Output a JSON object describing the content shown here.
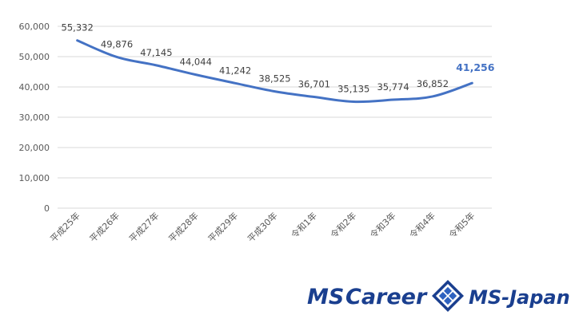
{
  "chart_data": {
    "type": "line",
    "categories": [
      "平成25年",
      "平成26年",
      "平成27年",
      "平成28年",
      "平成29年",
      "平成30年",
      "令和1年",
      "令和2年",
      "令和3年",
      "令和4年",
      "令和5年"
    ],
    "series": [
      {
        "values": [
          55332,
          49876,
          47145,
          44044,
          41242,
          38525,
          36701,
          35135,
          35774,
          36852,
          41256
        ],
        "labels": [
          "55,332",
          "49,876",
          "47,145",
          "44,044",
          "41,242",
          "38,525",
          "36,701",
          "35,135",
          "35,774",
          "36,852",
          "41,256"
        ],
        "color": "#4472C4"
      }
    ],
    "yticks": [
      "0",
      "10,000",
      "20,000",
      "30,000",
      "40,000",
      "50,000",
      "60,000"
    ],
    "ylim": [
      0,
      60000
    ],
    "grid": true,
    "legend": "none",
    "last_point_highlight": true
  },
  "logo": {
    "left_text_1": "MS",
    "left_text_2": "Career",
    "right_text": "MS-Japan",
    "color": "#1a3f8f",
    "icon": "diamond-mesh-icon"
  }
}
